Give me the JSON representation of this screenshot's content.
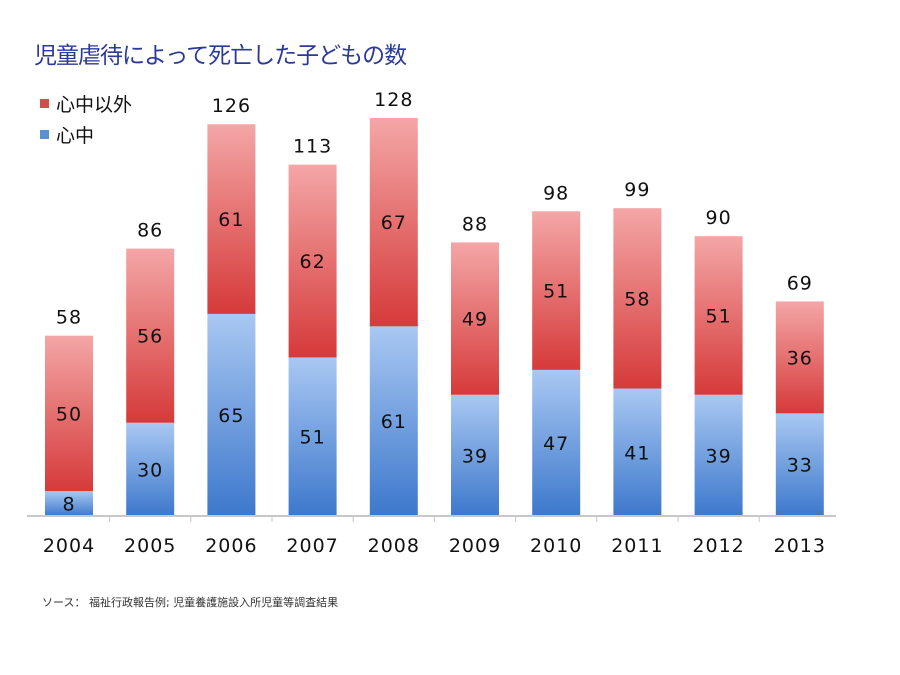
{
  "title": "児童虐待によって死亡した子どもの数",
  "source": "ソース： 福祉行政報告例; 児童養護施設入所児童等調査結果",
  "colors": {
    "shinju": "#5b8fd6",
    "other": "#d84a4a"
  },
  "chart_data": {
    "type": "bar",
    "stacked": true,
    "categories": [
      "2004",
      "2005",
      "2006",
      "2007",
      "2008",
      "2009",
      "2010",
      "2011",
      "2012",
      "2013"
    ],
    "series": [
      {
        "name": "心中",
        "values": [
          8,
          30,
          65,
          51,
          61,
          39,
          47,
          41,
          39,
          33
        ]
      },
      {
        "name": "心中以外",
        "values": [
          50,
          56,
          61,
          62,
          67,
          49,
          51,
          58,
          51,
          36
        ]
      }
    ],
    "totals": [
      58,
      86,
      126,
      113,
      128,
      88,
      98,
      99,
      90,
      69
    ],
    "legend": {
      "position": "top-left",
      "entries": [
        "心中以外",
        "心中"
      ]
    },
    "grid": false
  }
}
